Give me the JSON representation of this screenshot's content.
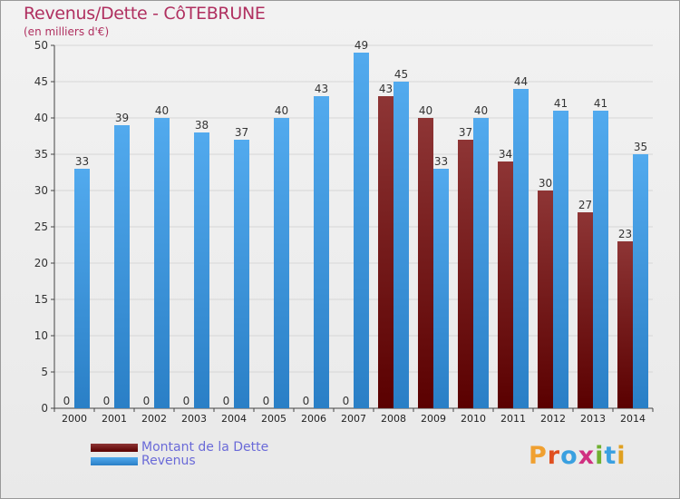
{
  "header": {
    "title": "Revenus/Dette - CôTEBRUNE",
    "subtitle": "(en milliers d'€)"
  },
  "legend": {
    "debt_label": "Montant de la Dette",
    "revenue_label": "Revenus"
  },
  "logo": {
    "letters": [
      "P",
      "r",
      "o",
      "x",
      "i",
      "t",
      "i"
    ],
    "colors": [
      "#f0a030",
      "#e05020",
      "#3aa0e0",
      "#d03080",
      "#70b030",
      "#3aa0e0",
      "#e0a020"
    ]
  },
  "colors": {
    "debt": "#8b1a1a",
    "revenue": "#3d9be0",
    "title": "#b03060"
  },
  "chart_data": {
    "type": "bar",
    "title": "Revenus/Dette - CôTEBRUNE",
    "ylabel": "(en milliers d'€)",
    "xlabel": "",
    "ylim": [
      0,
      50
    ],
    "yticks": [
      0,
      5,
      10,
      15,
      20,
      25,
      30,
      35,
      40,
      45,
      50
    ],
    "grid": true,
    "legend_position": "bottom-left",
    "categories": [
      "2000",
      "2001",
      "2002",
      "2003",
      "2004",
      "2005",
      "2006",
      "2007",
      "2008",
      "2009",
      "2010",
      "2011",
      "2012",
      "2013",
      "2014"
    ],
    "series": [
      {
        "name": "Montant de la Dette",
        "values": [
          0,
          0,
          0,
          0,
          0,
          0,
          0,
          0,
          43,
          40,
          37,
          34,
          30,
          27,
          23
        ]
      },
      {
        "name": "Revenus",
        "values": [
          33,
          39,
          40,
          38,
          37,
          40,
          43,
          49,
          45,
          33,
          40,
          44,
          41,
          41,
          35
        ]
      }
    ]
  }
}
